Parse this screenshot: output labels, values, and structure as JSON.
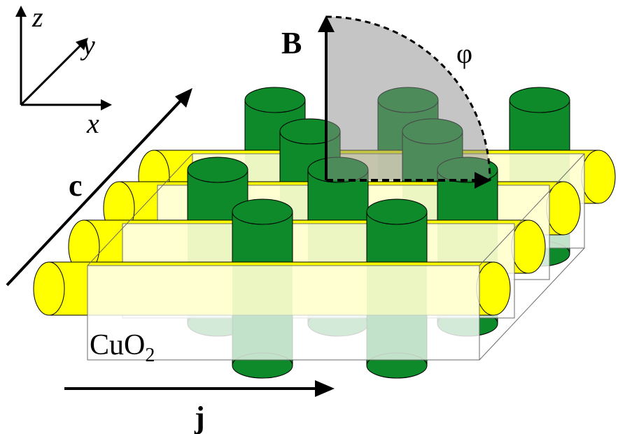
{
  "labels": {
    "axis_z": "z",
    "axis_y": "y",
    "axis_x": "x",
    "c_axis": "c",
    "field": "B",
    "angle": "φ",
    "current": "j",
    "layer_base": "CuO",
    "layer_sub": "2"
  },
  "colors": {
    "rod_green": "#0e8a2a",
    "rod_green_dark": "#0a6a1f",
    "rod_yellow": "#ffff00",
    "layer_fill": "#ffffff",
    "sector_fill": "#8c8c8c",
    "stroke": "#000000"
  }
}
